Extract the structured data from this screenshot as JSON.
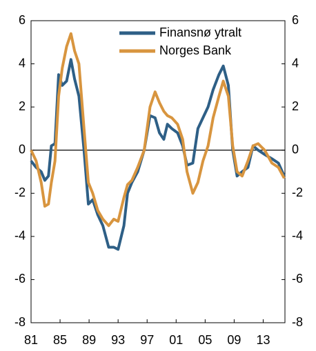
{
  "chart_data": {
    "type": "line",
    "x": [
      1981.0,
      1981.7,
      1982.4,
      1982.9,
      1983.4,
      1983.8,
      1984.3,
      1984.8,
      1985.3,
      1985.9,
      1986.5,
      1987.0,
      1987.6,
      1988.3,
      1988.9,
      1989.5,
      1990.2,
      1990.9,
      1991.7,
      1992.4,
      1993.0,
      1993.8,
      1994.3,
      1994.9,
      1995.7,
      1996.6,
      1997.4,
      1998.1,
      1998.7,
      1999.3,
      1999.8,
      2000.4,
      2001.2,
      2001.9,
      2002.5,
      2003.3,
      2004.0,
      2004.7,
      2005.4,
      2006.1,
      2006.9,
      2007.5,
      2008.2,
      2008.8,
      2009.4,
      2010.1,
      2010.9,
      2011.6,
      2012.3,
      2013.2,
      2014.2,
      2015.1,
      2015.9
    ],
    "series": [
      {
        "name": "Finansnø ytralt",
        "color": "#2e5f86",
        "values": [
          -0.5,
          -0.8,
          -1.0,
          -1.4,
          -1.2,
          0.2,
          0.3,
          3.5,
          3.0,
          3.2,
          4.2,
          3.3,
          2.5,
          0.0,
          -2.5,
          -2.3,
          -3.0,
          -3.5,
          -4.5,
          -4.5,
          -4.6,
          -3.5,
          -2.0,
          -1.5,
          -1.0,
          0.0,
          1.6,
          1.5,
          0.8,
          0.5,
          1.2,
          1.0,
          0.8,
          0.2,
          -0.7,
          -0.6,
          1.0,
          1.5,
          2.0,
          2.8,
          3.5,
          3.9,
          3.0,
          0.0,
          -1.2,
          -1.0,
          -0.8,
          0.2,
          0.0,
          -0.2,
          -0.4,
          -0.6,
          -1.2
        ]
      },
      {
        "name": "Norges Bank",
        "color": "#d8953f",
        "values": [
          0.0,
          -0.5,
          -1.5,
          -2.6,
          -2.5,
          -1.5,
          -0.5,
          2.5,
          3.8,
          4.8,
          5.4,
          4.6,
          4.0,
          1.0,
          -1.5,
          -2.0,
          -2.8,
          -3.2,
          -3.5,
          -3.2,
          -3.3,
          -2.2,
          -1.6,
          -1.4,
          -0.8,
          0.0,
          2.0,
          2.7,
          2.2,
          1.8,
          1.6,
          1.5,
          1.2,
          0.5,
          -1.0,
          -2.0,
          -1.5,
          -0.5,
          0.2,
          1.5,
          2.5,
          3.2,
          2.5,
          0.2,
          -1.0,
          -1.2,
          -0.5,
          0.2,
          0.3,
          0.0,
          -0.6,
          -0.8,
          -1.3
        ]
      }
    ],
    "xlim": [
      1981,
      2016
    ],
    "xticks": [
      {
        "value": 1981,
        "label": "81"
      },
      {
        "value": 1985,
        "label": "85"
      },
      {
        "value": 1989,
        "label": "89"
      },
      {
        "value": 1993,
        "label": "93"
      },
      {
        "value": 1997,
        "label": "97"
      },
      {
        "value": 2001,
        "label": "01"
      },
      {
        "value": 2005,
        "label": "05"
      },
      {
        "value": 2009,
        "label": "09"
      },
      {
        "value": 2013,
        "label": "13"
      }
    ],
    "ylim": [
      -8,
      6
    ],
    "yticks": [
      -8,
      -6,
      -4,
      -2,
      0,
      2,
      4,
      6
    ],
    "legend": "upper right"
  }
}
